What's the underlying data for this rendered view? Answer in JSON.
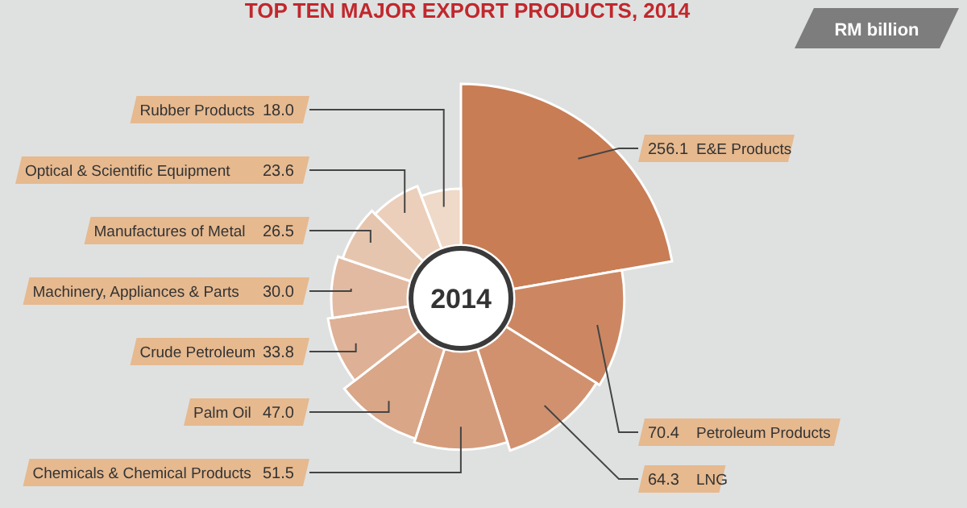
{
  "chart_data": {
    "type": "other",
    "title": "TOP TEN MAJOR EXPORT PRODUCTS, 2014",
    "categories": [
      "E&E Products",
      "Petroleum Products",
      "LNG",
      "Chemicals & Chemical Products",
      "Palm Oil",
      "Crude Petroleum",
      "Machinery, Appliances & Parts",
      "Manufactures of Metal",
      "Optical & Scientific Equipment",
      "Rubber Products"
    ],
    "values": [
      256.1,
      70.4,
      64.3,
      51.5,
      47.0,
      33.8,
      30.0,
      26.5,
      23.6,
      18.0
    ],
    "value_labels": [
      "256.1",
      "70.4",
      "64.3",
      "51.5",
      "47.0",
      "33.8",
      "30.0",
      "26.5",
      "23.6",
      "18.0"
    ],
    "annotations": [
      "RM billion",
      "2014"
    ]
  }
}
